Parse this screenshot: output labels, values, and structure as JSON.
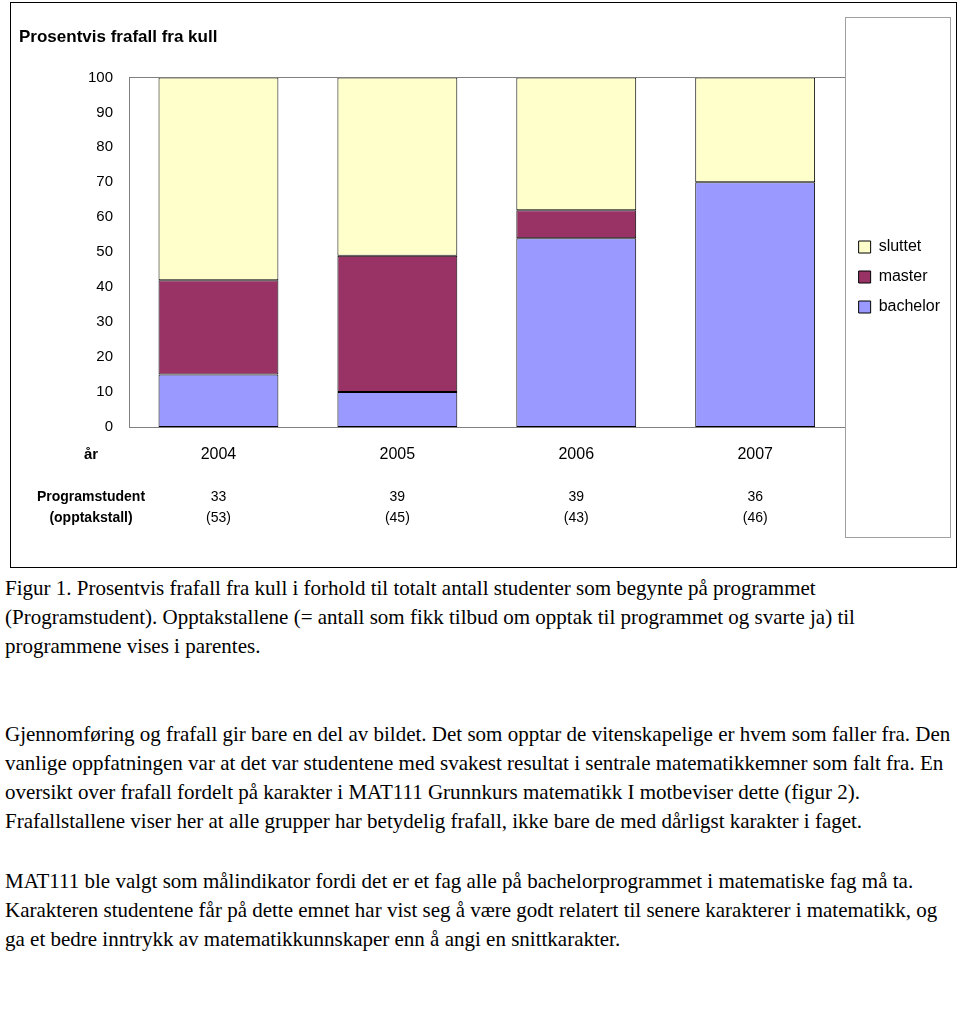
{
  "chart_data": {
    "type": "bar",
    "title": "Prosentvis frafall fra kull",
    "categories": [
      "2004",
      "2005",
      "2006",
      "2007"
    ],
    "series": [
      {
        "name": "bachelor",
        "color": "#9999ff",
        "values": [
          15,
          10,
          54,
          70
        ]
      },
      {
        "name": "master",
        "color": "#993366",
        "values": [
          27,
          39,
          8,
          0
        ]
      },
      {
        "name": "sluttet",
        "color": "#ffffcc",
        "values": [
          58,
          51,
          38,
          30
        ]
      }
    ],
    "stacked": true,
    "ylim": [
      0,
      100
    ],
    "yticks": [
      0,
      10,
      20,
      30,
      40,
      50,
      60,
      70,
      80,
      90,
      100
    ],
    "grid": false,
    "legend": "right",
    "x_label": "år",
    "programstudent_label": "Programstudent",
    "opptakstall_label": "(opptakstall)",
    "programstudent": [
      33,
      39,
      39,
      36
    ],
    "opptakstall": [
      {
        "value": 53,
        "label": "(53)"
      },
      {
        "value": 45,
        "label": "(45)"
      },
      {
        "value": 43,
        "label": "(43)"
      },
      {
        "value": 46,
        "label": "(46)"
      }
    ]
  },
  "document": {
    "caption": "Figur 1. Prosentvis frafall fra kull i forhold til totalt antall studenter som begynte på programmet (Programstudent). Opptakstallene (= antall som fikk tilbud om opptak til programmet og svarte ja) til programmene vises i parentes.",
    "paragraphs": [
      "Gjennomføring og frafall gir bare en del av bildet. Det som opptar de vitenskapelige er hvem som faller fra. Den vanlige oppfatningen var at det var studentene med svakest resultat i sentrale matematikkemner som falt fra. En oversikt over frafall fordelt på karakter i MAT111 Grunnkurs matematikk I motbeviser dette (figur 2). Frafallstallene viser her at alle grupper har betydelig frafall, ikke bare de med dårligst karakter i faget.",
      "MAT111 ble valgt som målindikator fordi det er et fag alle på bachelorprogrammet i matematiske fag må ta. Karakteren studentene får på dette emnet har vist seg å være godt relatert til senere karakterer i matematikk, og ga et bedre inntrykk av matematikkunnskaper enn å angi en snittkarakter."
    ]
  }
}
